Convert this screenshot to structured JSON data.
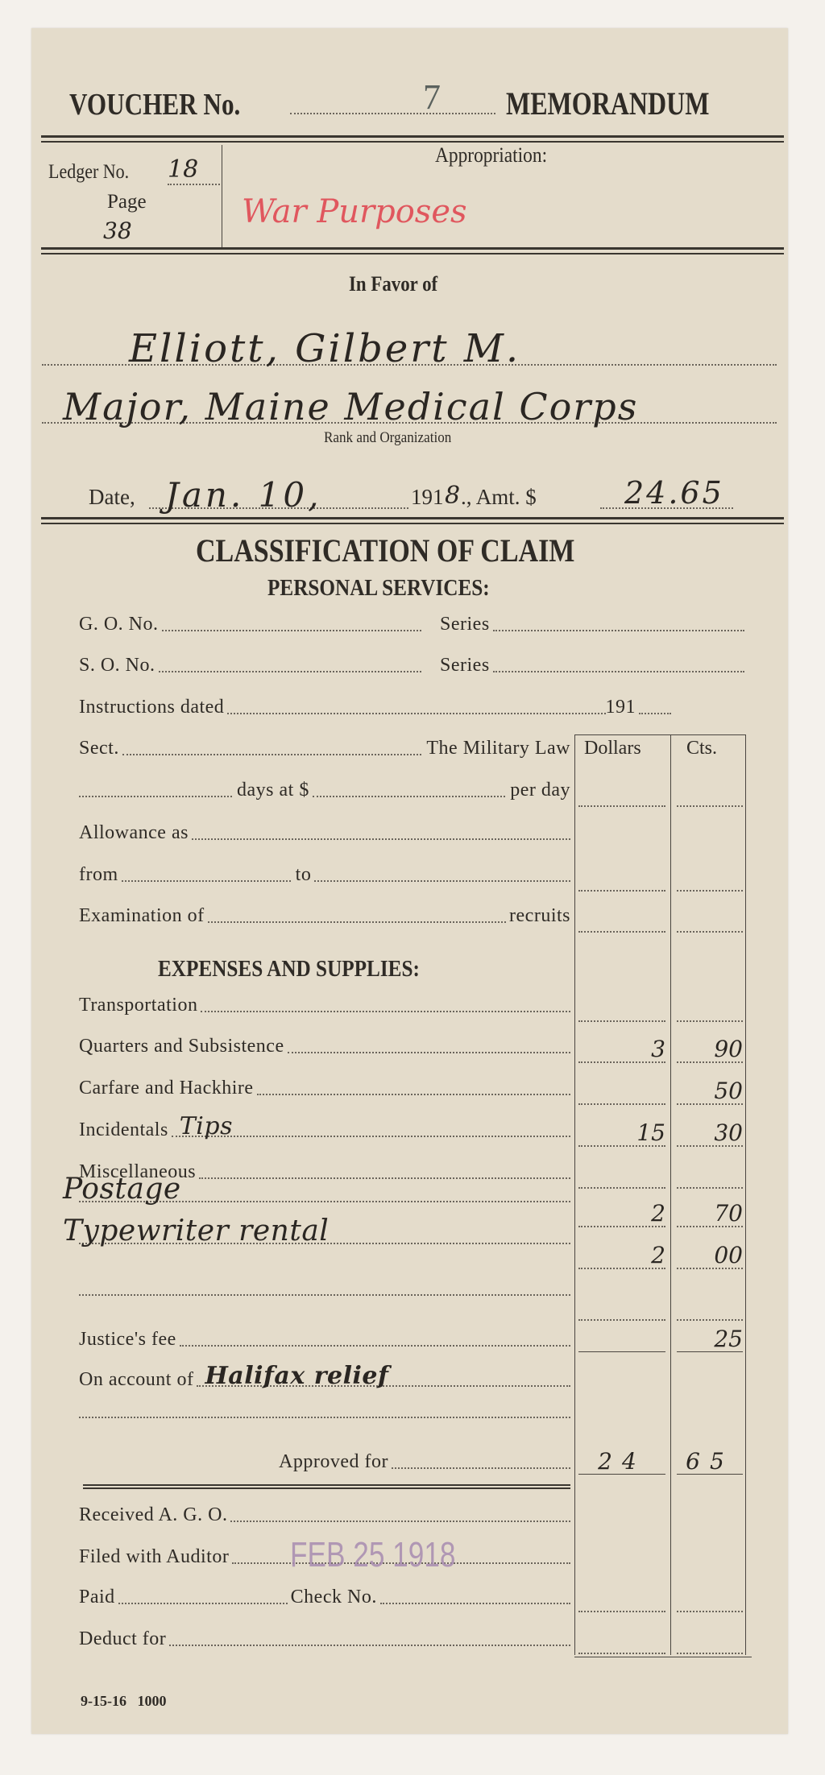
{
  "header": {
    "voucher_label": "VOUCHER No.",
    "voucher_no": "7",
    "memorandum": "MEMORANDUM"
  },
  "ledger": {
    "ledger_label": "Ledger No.",
    "ledger_no": "18",
    "page_label": "Page",
    "page_no": "38"
  },
  "appropriation": {
    "label": "Appropriation:",
    "value": "War Purposes",
    "value_color": "#e0575e"
  },
  "favor": {
    "label": "In Favor of",
    "name": "Elliott, Gilbert M.",
    "rank_org": "Major, Maine Medical Corps",
    "rank_label": "Rank and Organization"
  },
  "date_line": {
    "date_label": "Date,",
    "date_value": "Jan. 10,",
    "year_prefix": "191",
    "year_suffix": "8",
    "amt_label": "., Amt. $",
    "amount": "24.65"
  },
  "classification": {
    "title": "CLASSIFICATION OF CLAIM",
    "personal": "PERSONAL SERVICES:",
    "expenses": "EXPENSES AND SUPPLIES:",
    "dollars": "Dollars",
    "cents": "Cts."
  },
  "personal_rows": {
    "go": "G. O. No.",
    "so": "S. O. No.",
    "series": "Series",
    "instructions": "Instructions dated",
    "year191": "191",
    "sect": "Sect.",
    "military_law": "The Military Law",
    "days_at": "days at $",
    "per_day": "per day",
    "allowance": "Allowance as",
    "from": "from",
    "to": "to",
    "examination": "Examination of",
    "recruits": "recruits"
  },
  "expense_rows": [
    {
      "label": "Transportation",
      "hand": "",
      "dollars": "",
      "cents": ""
    },
    {
      "label": "Quarters and Subsistence",
      "hand": "",
      "dollars": "3",
      "cents": "90"
    },
    {
      "label": "Carfare and Hackhire",
      "hand": "",
      "dollars": "",
      "cents": "50"
    },
    {
      "label": "Incidentals",
      "hand": "Tips",
      "dollars": "15",
      "cents": "30"
    },
    {
      "label": "Miscellaneous",
      "hand": "",
      "dollars": "",
      "cents": ""
    },
    {
      "label": "",
      "hand": "Postage",
      "dollars": "2",
      "cents": "70"
    },
    {
      "label": "",
      "hand": "Typewriter rental",
      "dollars": "2",
      "cents": "00"
    },
    {
      "label": "",
      "hand": "",
      "dollars": "",
      "cents": ""
    }
  ],
  "justice": {
    "label": "Justice's fee",
    "cents": "25"
  },
  "account": {
    "label": "On account of",
    "hand": "Halifax relief"
  },
  "approved": {
    "label": "Approved for",
    "dollars": "24",
    "cents": "65"
  },
  "bottom": {
    "received": "Received A. G. O.",
    "filed": "Filed with Auditor",
    "stamp": "FEB 25 1918",
    "stamp_color": "#a88bb0",
    "paid": "Paid",
    "check": "Check No.",
    "deduct": "Deduct for"
  },
  "footer": {
    "code": "9-15-16",
    "qty": "1000"
  }
}
